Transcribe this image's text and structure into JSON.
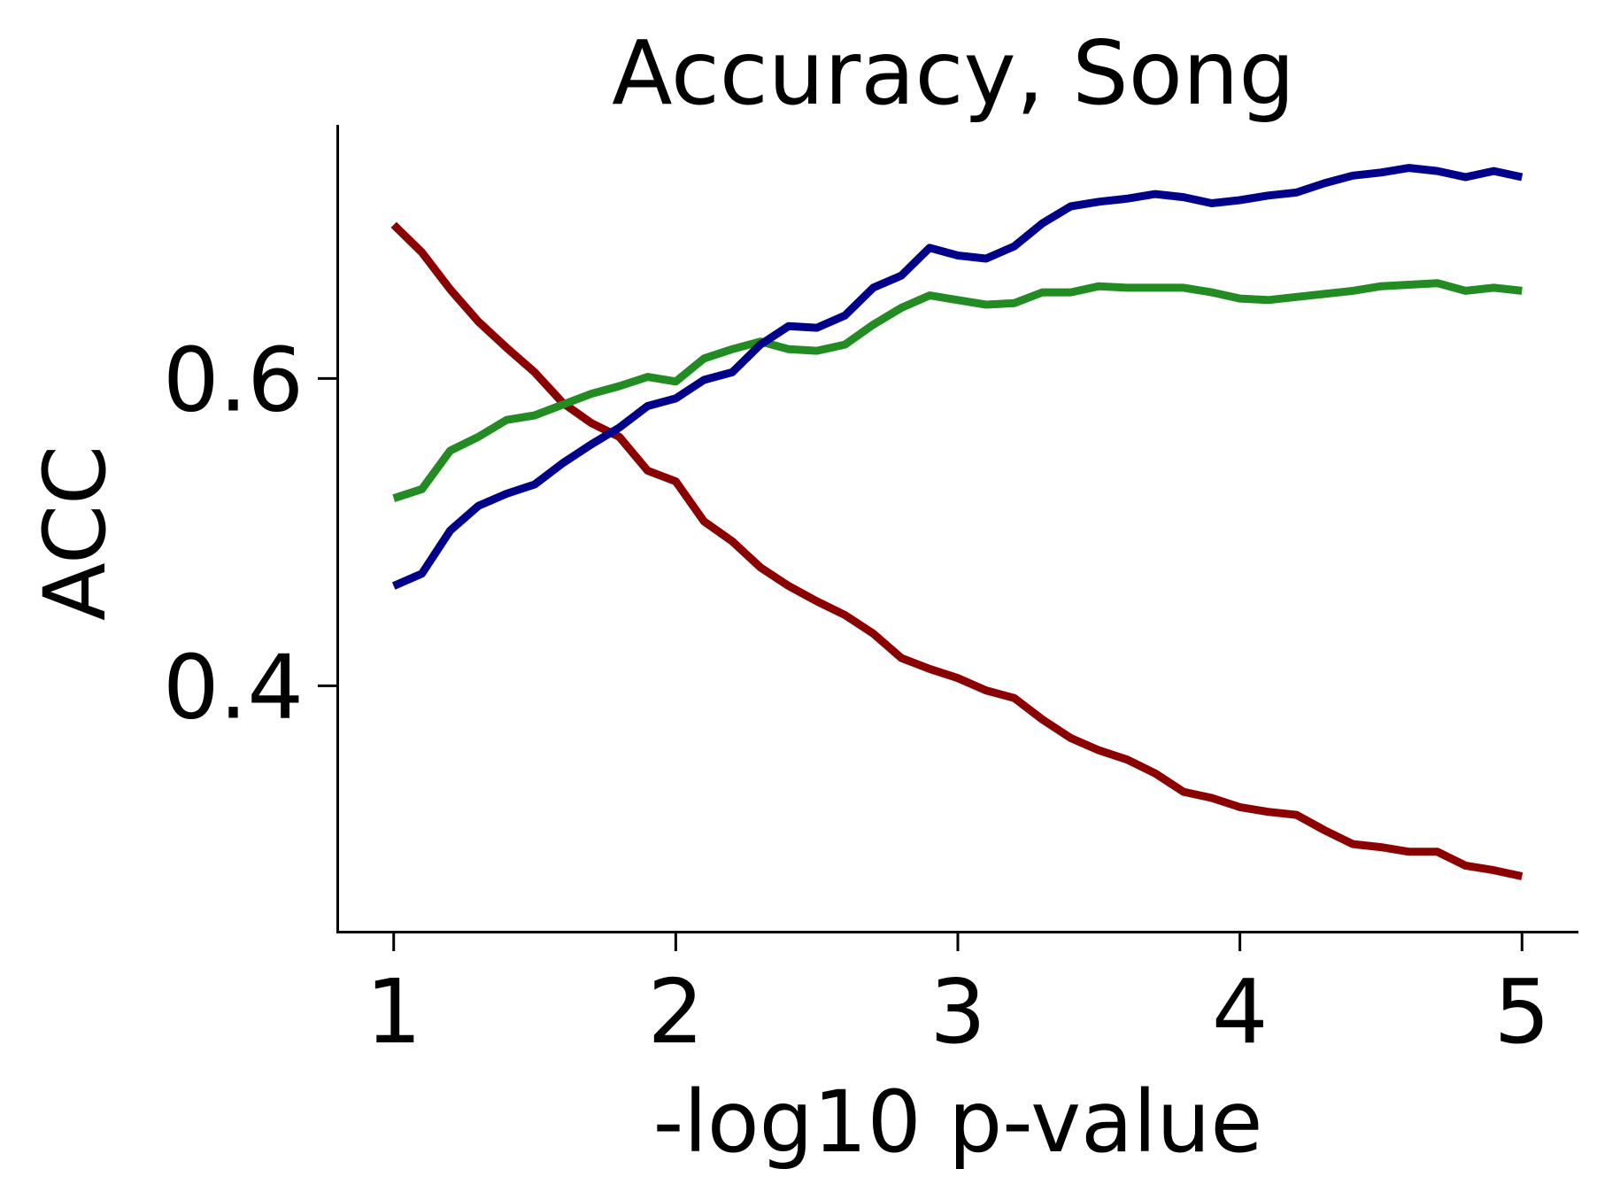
{
  "chart_data": {
    "type": "line",
    "title": "Accuracy, Song",
    "xlabel": "-log10 p-value",
    "ylabel": "ACC",
    "xlim": [
      0.8,
      5.2
    ],
    "ylim": [
      0.24,
      0.765
    ],
    "xticks": [
      1,
      2,
      3,
      4,
      5
    ],
    "xtick_labels": [
      "1",
      "2",
      "3",
      "4",
      "5"
    ],
    "yticks": [
      0.4,
      0.6
    ],
    "ytick_labels": [
      "0.4",
      "0.6"
    ],
    "grid": false,
    "legend": null,
    "spines": [
      "left",
      "bottom"
    ],
    "x": [
      1.0,
      1.1,
      1.2,
      1.3,
      1.4,
      1.5,
      1.6,
      1.7,
      1.8,
      1.9,
      2.0,
      2.1,
      2.2,
      2.3,
      2.4,
      2.5,
      2.6,
      2.7,
      2.8,
      2.9,
      3.0,
      3.1,
      3.2,
      3.3,
      3.4,
      3.5,
      3.6,
      3.7,
      3.8,
      3.9,
      4.0,
      4.1,
      4.2,
      4.3,
      4.4,
      4.5,
      4.6,
      4.7,
      4.8,
      4.9,
      5.0
    ],
    "series": [
      {
        "color": "#8b0000",
        "values": [
          0.7,
          0.682,
          0.658,
          0.637,
          0.62,
          0.604,
          0.584,
          0.571,
          0.562,
          0.54,
          0.533,
          0.507,
          0.494,
          0.477,
          0.465,
          0.455,
          0.446,
          0.434,
          0.418,
          0.411,
          0.405,
          0.397,
          0.392,
          0.378,
          0.366,
          0.358,
          0.352,
          0.343,
          0.331,
          0.327,
          0.321,
          0.318,
          0.316,
          0.306,
          0.297,
          0.295,
          0.292,
          0.292,
          0.283,
          0.28,
          0.276
        ]
      },
      {
        "color": "#228b22",
        "values": [
          0.522,
          0.528,
          0.553,
          0.562,
          0.573,
          0.576,
          0.583,
          0.59,
          0.595,
          0.601,
          0.598,
          0.613,
          0.619,
          0.624,
          0.619,
          0.618,
          0.622,
          0.635,
          0.646,
          0.654,
          0.651,
          0.648,
          0.649,
          0.656,
          0.656,
          0.66,
          0.659,
          0.659,
          0.659,
          0.656,
          0.652,
          0.651,
          0.653,
          0.655,
          0.657,
          0.66,
          0.661,
          0.662,
          0.657,
          0.659,
          0.657
        ]
      },
      {
        "color": "#00008b",
        "values": [
          0.465,
          0.473,
          0.501,
          0.517,
          0.525,
          0.531,
          0.545,
          0.557,
          0.568,
          0.582,
          0.587,
          0.599,
          0.604,
          0.622,
          0.634,
          0.633,
          0.641,
          0.659,
          0.667,
          0.685,
          0.68,
          0.678,
          0.686,
          0.701,
          0.712,
          0.715,
          0.717,
          0.72,
          0.718,
          0.714,
          0.716,
          0.719,
          0.721,
          0.727,
          0.732,
          0.734,
          0.737,
          0.735,
          0.731,
          0.735,
          0.731
        ]
      }
    ]
  }
}
